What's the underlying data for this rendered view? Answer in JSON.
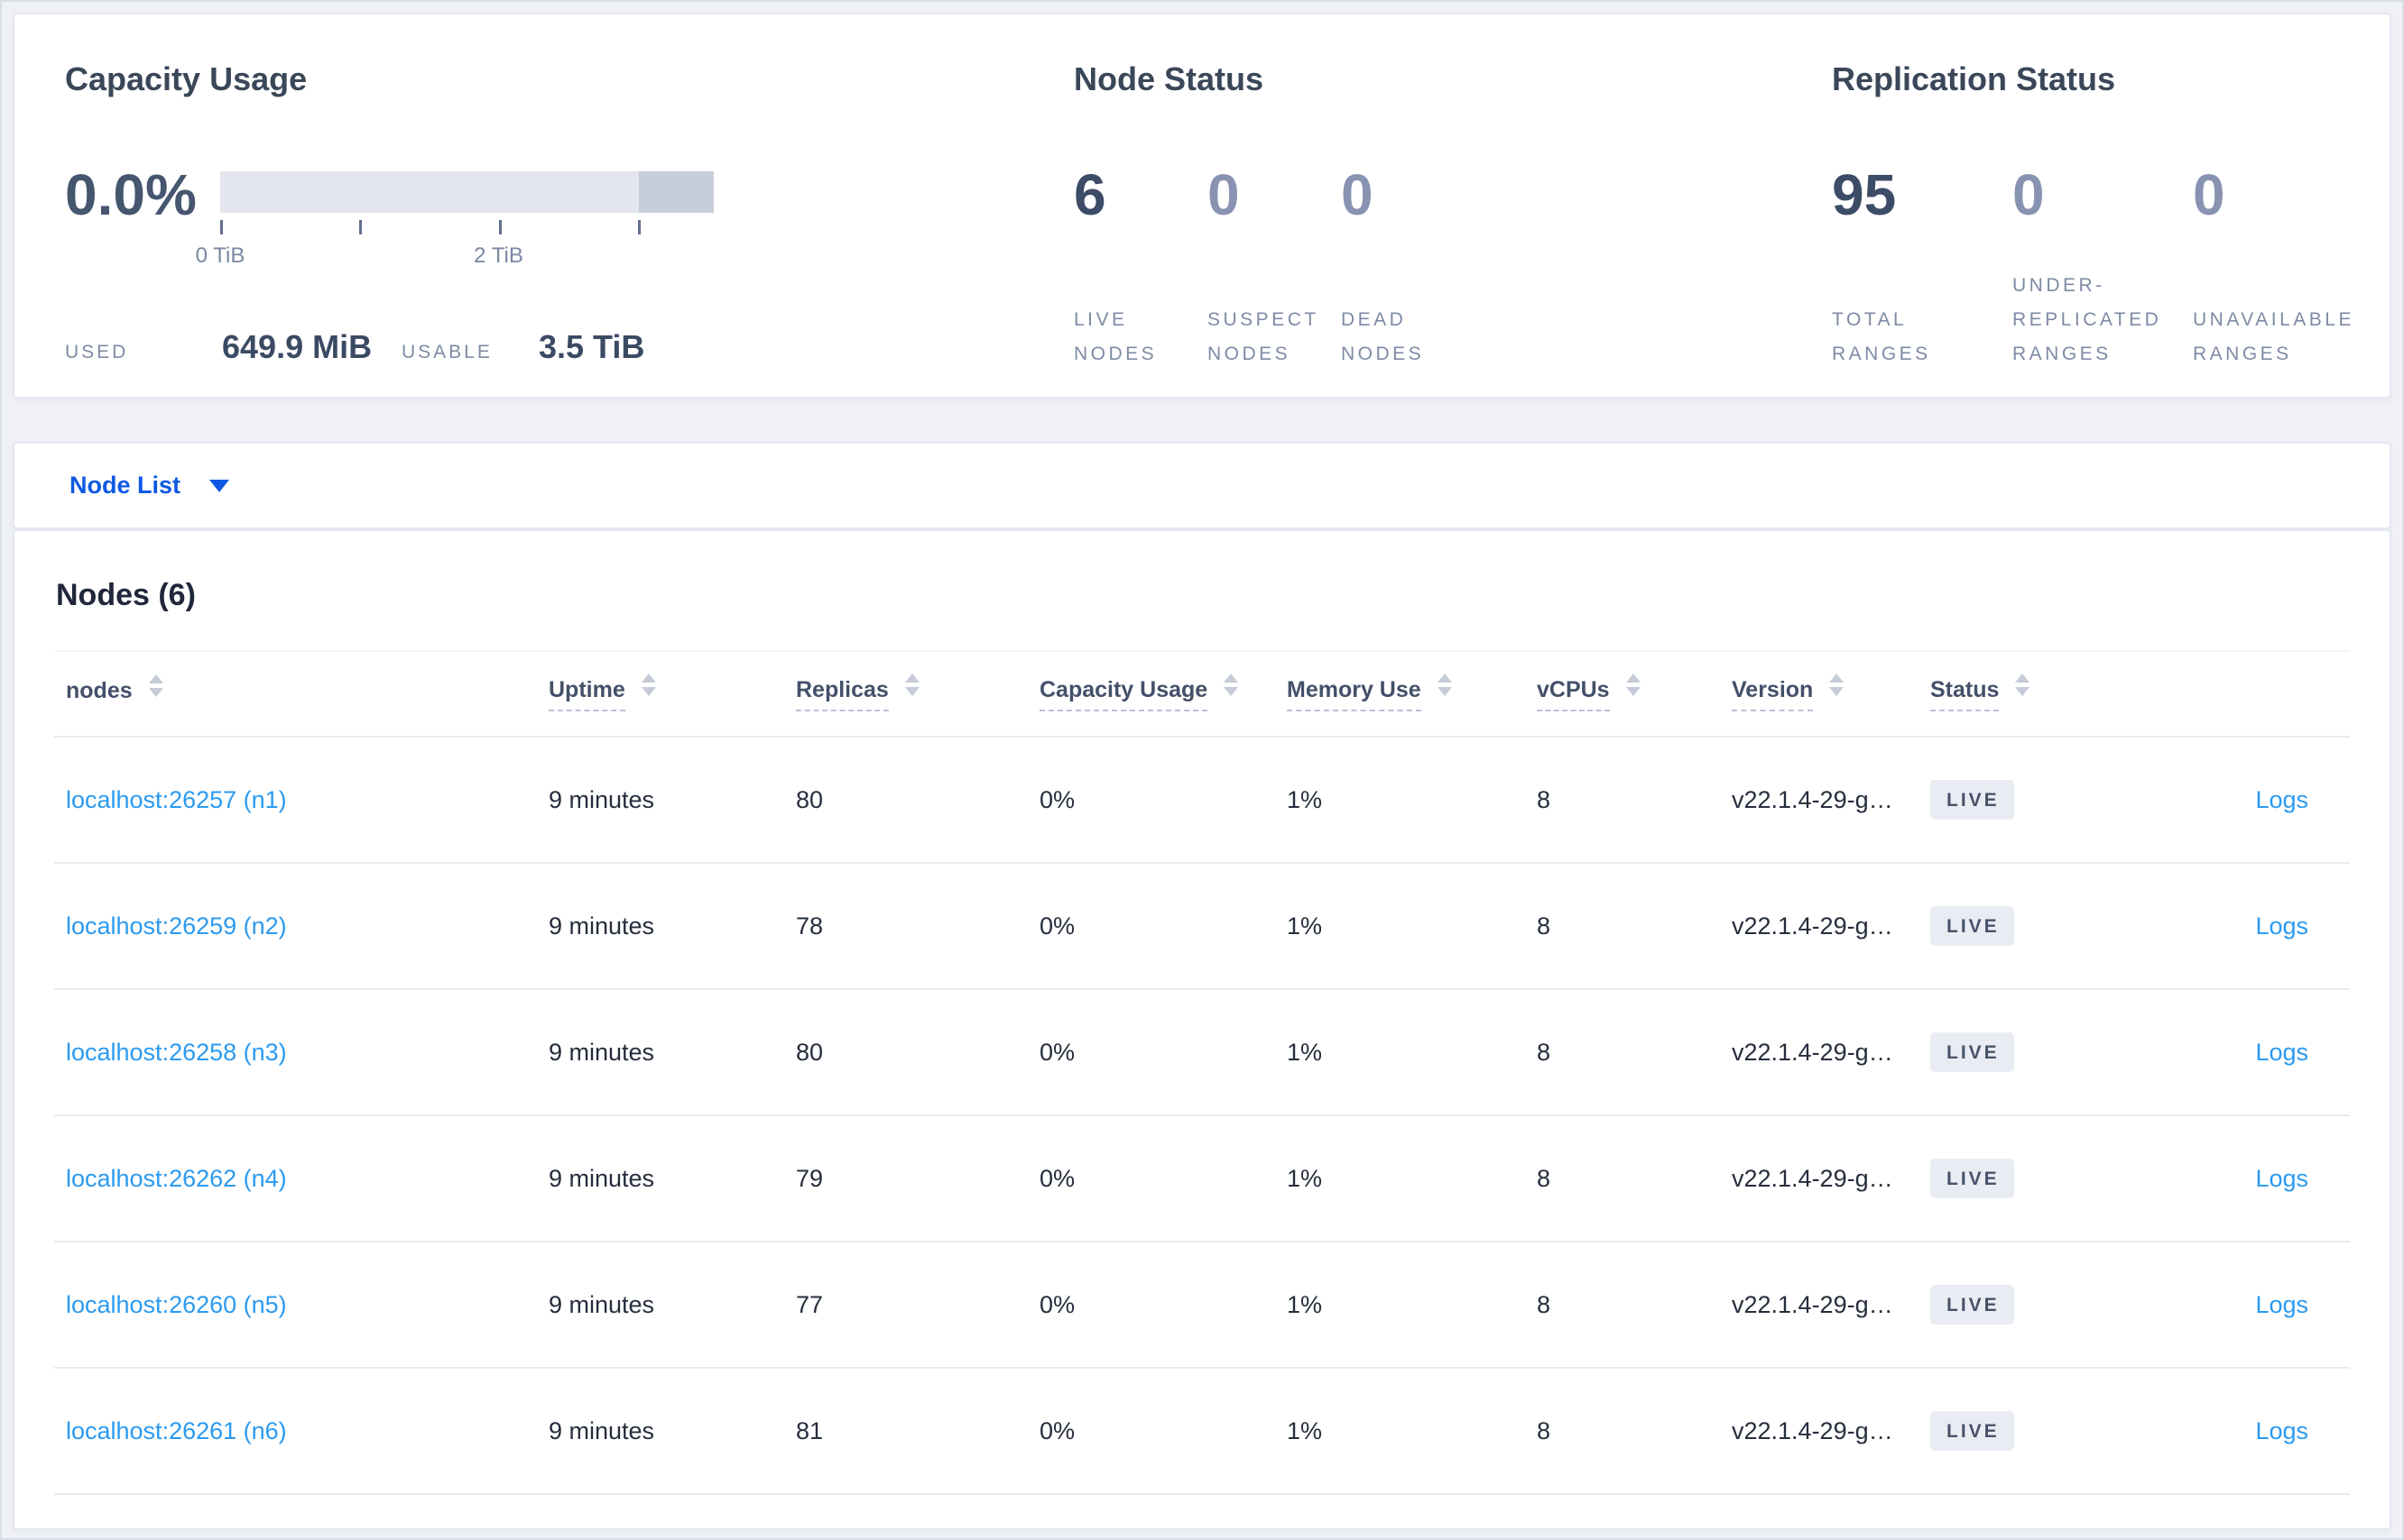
{
  "colors": {
    "primary_blue": "#0d59e3",
    "link_blue": "#2b9af0",
    "dark_slate": "#3c4c66",
    "muted_label": "#7e8aa5",
    "badge_bg": "#e9ecf2",
    "bar_light": "#e3e6ed",
    "bar_dark": "#c8cdda"
  },
  "summary": {
    "capacity": {
      "title": "Capacity Usage",
      "percent": "0.0%",
      "tick_labels": [
        "0 TiB",
        "2 TiB"
      ],
      "used_label": "USED",
      "used_value": "649.9 MiB",
      "usable_label": "USABLE",
      "usable_value": "3.5 TiB"
    },
    "node_status": {
      "title": "Node Status",
      "stats": [
        {
          "value": "6",
          "label": "LIVE NODES",
          "emphasis": true
        },
        {
          "value": "0",
          "label": "SUSPECT NODES",
          "emphasis": false
        },
        {
          "value": "0",
          "label": "DEAD NODES",
          "emphasis": false
        }
      ]
    },
    "replication": {
      "title": "Replication Status",
      "stats": [
        {
          "value": "95",
          "label": "TOTAL RANGES",
          "emphasis": true
        },
        {
          "value": "0",
          "label": "UNDER-REPLICATED RANGES",
          "emphasis": false
        },
        {
          "value": "0",
          "label": "UNAVAILABLE RANGES",
          "emphasis": false
        }
      ]
    }
  },
  "node_list": {
    "dropdown_label": "Node List"
  },
  "nodes_table": {
    "title": "Nodes (6)",
    "columns": [
      {
        "label": "nodes",
        "dashed": false
      },
      {
        "label": "Uptime",
        "dashed": true
      },
      {
        "label": "Replicas",
        "dashed": true
      },
      {
        "label": "Capacity Usage",
        "dashed": true
      },
      {
        "label": "Memory Use",
        "dashed": true
      },
      {
        "label": "vCPUs",
        "dashed": true
      },
      {
        "label": "Version",
        "dashed": true
      },
      {
        "label": "Status",
        "dashed": true
      },
      {
        "label": "",
        "dashed": false
      }
    ],
    "rows": [
      {
        "node": "localhost:26257 (n1)",
        "uptime": "9 minutes",
        "replicas": "80",
        "capacity": "0%",
        "memory": "1%",
        "vcpus": "8",
        "version": "v22.1.4-29-g…",
        "status": "LIVE",
        "logs": "Logs"
      },
      {
        "node": "localhost:26259 (n2)",
        "uptime": "9 minutes",
        "replicas": "78",
        "capacity": "0%",
        "memory": "1%",
        "vcpus": "8",
        "version": "v22.1.4-29-g…",
        "status": "LIVE",
        "logs": "Logs"
      },
      {
        "node": "localhost:26258 (n3)",
        "uptime": "9 minutes",
        "replicas": "80",
        "capacity": "0%",
        "memory": "1%",
        "vcpus": "8",
        "version": "v22.1.4-29-g…",
        "status": "LIVE",
        "logs": "Logs"
      },
      {
        "node": "localhost:26262 (n4)",
        "uptime": "9 minutes",
        "replicas": "79",
        "capacity": "0%",
        "memory": "1%",
        "vcpus": "8",
        "version": "v22.1.4-29-g…",
        "status": "LIVE",
        "logs": "Logs"
      },
      {
        "node": "localhost:26260 (n5)",
        "uptime": "9 minutes",
        "replicas": "77",
        "capacity": "0%",
        "memory": "1%",
        "vcpus": "8",
        "version": "v22.1.4-29-g…",
        "status": "LIVE",
        "logs": "Logs"
      },
      {
        "node": "localhost:26261 (n6)",
        "uptime": "9 minutes",
        "replicas": "81",
        "capacity": "0%",
        "memory": "1%",
        "vcpus": "8",
        "version": "v22.1.4-29-g…",
        "status": "LIVE",
        "logs": "Logs"
      }
    ]
  }
}
